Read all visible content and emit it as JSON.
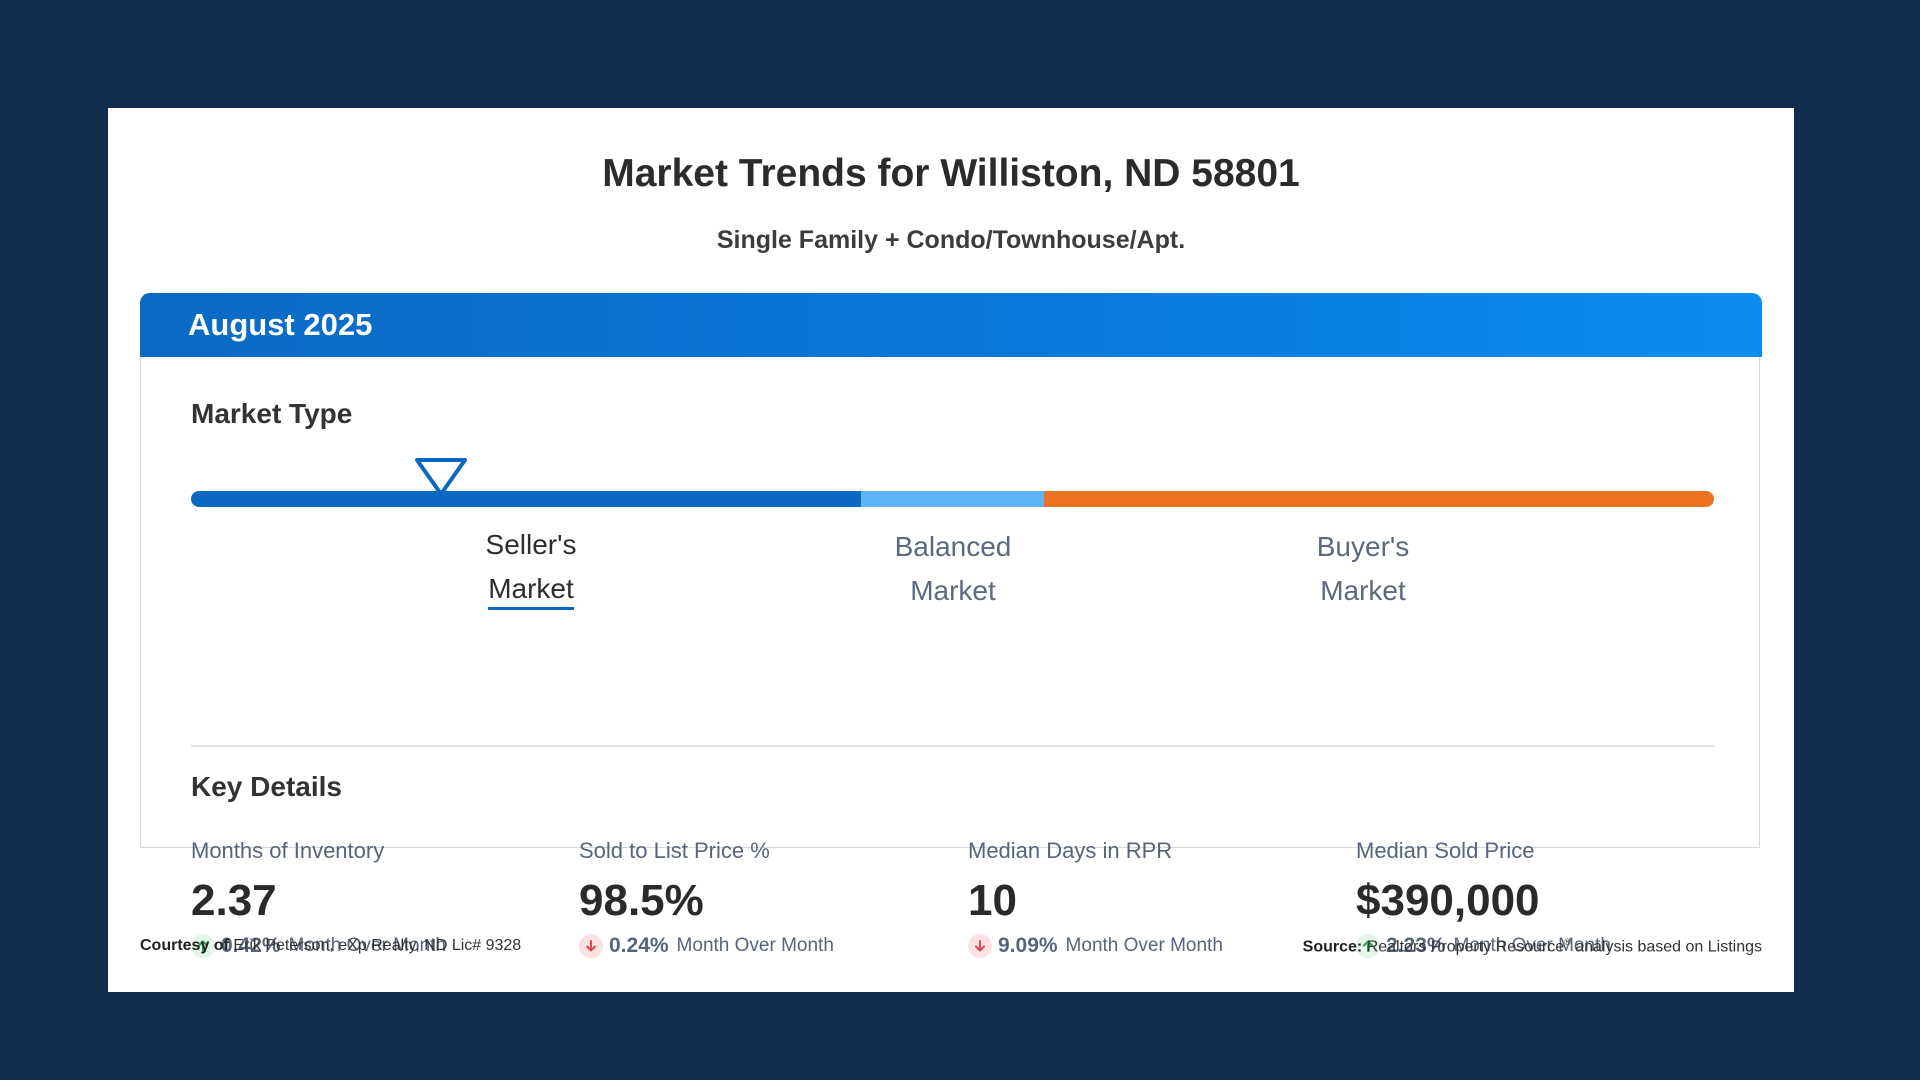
{
  "header": {
    "title": "Market Trends for Williston, ND 58801",
    "subtitle": "Single Family + Condo/Townhouse/Apt."
  },
  "panel": {
    "period": "August 2025"
  },
  "market_type": {
    "heading": "Market Type",
    "indicator_position": 0.197,
    "segments": [
      {
        "name": "seller",
        "fraction": 0.44,
        "color": "#0a68c2"
      },
      {
        "name": "balanced",
        "fraction": 0.12,
        "color": "#5fb4f6"
      },
      {
        "name": "buyer",
        "fraction": 0.44,
        "color": "#ec7322"
      }
    ],
    "labels": [
      {
        "line1": "Seller's",
        "line2": "Market",
        "active": true
      },
      {
        "line1": "Balanced",
        "line2": "Market",
        "active": false
      },
      {
        "line1": "Buyer's",
        "line2": "Market",
        "active": false
      }
    ]
  },
  "key_details": {
    "heading": "Key Details",
    "metrics": [
      {
        "label": "Months of Inventory",
        "value": "2.37",
        "direction": "up",
        "change": "0.42%",
        "period": "Month Over Month"
      },
      {
        "label": "Sold to List Price %",
        "value": "98.5%",
        "direction": "down",
        "change": "0.24%",
        "period": "Month Over Month"
      },
      {
        "label": "Median Days in RPR",
        "value": "10",
        "direction": "down",
        "change": "9.09%",
        "period": "Month Over Month"
      },
      {
        "label": "Median Sold Price",
        "value": "$390,000",
        "direction": "up",
        "change": "2.23%",
        "period": "Month Over Month"
      }
    ]
  },
  "footer": {
    "courtesy_label": "Courtesy of",
    "courtesy_text": "Erik Peterson, eXp Realty, ND Lic# 9328",
    "source_label": "Source:",
    "source_text_1": "Realtors Property Resource",
    "source_mark": "®",
    "source_text_2": "analysis based on Listings"
  },
  "colors": {
    "background": "#112d4e",
    "up": "#2a9d55",
    "down": "#d94a4a"
  }
}
